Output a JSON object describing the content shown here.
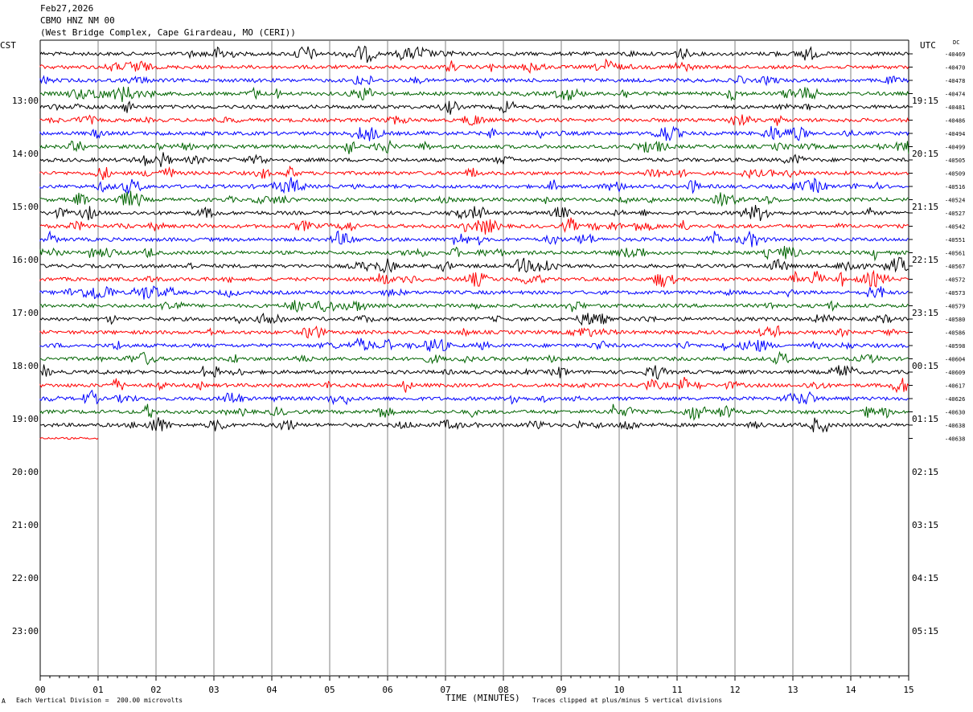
{
  "header": {
    "date": "Feb27,2026",
    "station": "CBMO HNZ NM 00",
    "location": "(West Bridge Complex, Cape Girardeau, MO (CERI))"
  },
  "left_axis_title": "CST",
  "right_axis_title": "UTC",
  "dc_label": "DC",
  "footer": {
    "scale_marker": "A",
    "scale_note": "Each Vertical Division =  200.00 microvolts",
    "clip_note": "Traces clipped at plus/minus 5 vertical divisions"
  },
  "colors": {
    "trace_cycle": [
      "#000000",
      "#ff0000",
      "#0000ff",
      "#006400"
    ],
    "grid": "#808080"
  },
  "chart_data": {
    "type": "line",
    "title": "CBMO HNZ NM 00",
    "xlabel": "TIME (MINUTES)",
    "x_ticks": [
      "00",
      "01",
      "02",
      "03",
      "04",
      "05",
      "06",
      "07",
      "08",
      "09",
      "10",
      "11",
      "12",
      "13",
      "14",
      "15"
    ],
    "xlim": [
      0,
      15
    ],
    "cst_hours": [
      "13:00",
      "14:00",
      "15:00",
      "16:00",
      "17:00",
      "18:00",
      "19:00",
      "20:00",
      "21:00",
      "22:00",
      "23:00"
    ],
    "utc_hours": [
      "19:15",
      "20:15",
      "21:15",
      "22:15",
      "23:15",
      "00:15",
      "01:15",
      "02:15",
      "03:15",
      "04:15",
      "05:15"
    ],
    "rows_per_hour": 4,
    "first_row_offset_rows": -4,
    "dc_offsets": [
      "-40469",
      "-40470",
      "-40478",
      "-40474",
      "-40481",
      "-40486",
      "-40494",
      "-40499",
      "-40505",
      "-40509",
      "-40516",
      "-40524",
      "-40527",
      "-40542",
      "-40551",
      "-40561",
      "-40567",
      "-40572",
      "-40573",
      "-40579",
      "-40580",
      "-40586",
      "-40598",
      "-40604",
      "-40609",
      "-40617",
      "-40626",
      "-40630",
      "-40638",
      "-40638"
    ],
    "last_row_minutes": 1,
    "scale_microvolts_per_division": 200.0,
    "clip_divisions": 5,
    "grid": true
  }
}
